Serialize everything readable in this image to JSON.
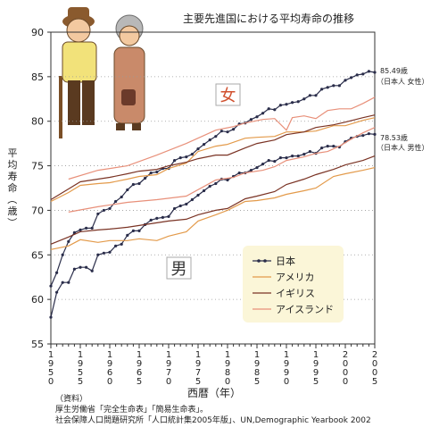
{
  "chart_data": {
    "type": "line",
    "title": "主要先進国における平均寿命の推移",
    "xlabel": "西暦（年）",
    "ylabel": "平均寿命（歳）",
    "xlim": [
      1950,
      2005
    ],
    "ylim": [
      55,
      90
    ],
    "yticks": [
      55,
      60,
      65,
      70,
      75,
      80,
      85,
      90
    ],
    "xticks": [
      1950,
      1955,
      1960,
      1965,
      1970,
      1975,
      1980,
      1985,
      1990,
      1995,
      2000,
      2005
    ],
    "grid": "horizontal dotted",
    "legend_position": "bottom-right",
    "groups": {
      "female": "女",
      "male": "男"
    },
    "annotations": [
      {
        "text": "85.49歳",
        "sub": "（日本人 女性）"
      },
      {
        "text": "78.53歳",
        "sub": "（日本人 男性）"
      }
    ],
    "series": [
      {
        "name": "日本",
        "group": "female",
        "color": "#2a2d4a",
        "marker": "dot",
        "points": [
          [
            1950,
            61.5
          ],
          [
            1951,
            63.0
          ],
          [
            1952,
            65.0
          ],
          [
            1953,
            66.5
          ],
          [
            1954,
            67.5
          ],
          [
            1955,
            67.8
          ],
          [
            1956,
            68.0
          ],
          [
            1957,
            68.0
          ],
          [
            1958,
            69.6
          ],
          [
            1959,
            70.0
          ],
          [
            1960,
            70.2
          ],
          [
            1961,
            71.0
          ],
          [
            1962,
            71.5
          ],
          [
            1963,
            72.3
          ],
          [
            1964,
            72.9
          ],
          [
            1965,
            73.0
          ],
          [
            1966,
            73.6
          ],
          [
            1967,
            74.2
          ],
          [
            1968,
            74.3
          ],
          [
            1969,
            74.7
          ],
          [
            1970,
            74.7
          ],
          [
            1971,
            75.6
          ],
          [
            1972,
            75.9
          ],
          [
            1973,
            76.0
          ],
          [
            1974,
            76.3
          ],
          [
            1975,
            76.9
          ],
          [
            1976,
            77.4
          ],
          [
            1977,
            77.9
          ],
          [
            1978,
            78.3
          ],
          [
            1979,
            78.9
          ],
          [
            1980,
            78.8
          ],
          [
            1981,
            79.1
          ],
          [
            1982,
            79.7
          ],
          [
            1983,
            79.8
          ],
          [
            1984,
            80.2
          ],
          [
            1985,
            80.5
          ],
          [
            1986,
            80.9
          ],
          [
            1987,
            81.4
          ],
          [
            1988,
            81.3
          ],
          [
            1989,
            81.8
          ],
          [
            1990,
            81.9
          ],
          [
            1991,
            82.1
          ],
          [
            1992,
            82.2
          ],
          [
            1993,
            82.5
          ],
          [
            1994,
            82.9
          ],
          [
            1995,
            82.9
          ],
          [
            1996,
            83.6
          ],
          [
            1997,
            83.8
          ],
          [
            1998,
            84.0
          ],
          [
            1999,
            84.0
          ],
          [
            2000,
            84.6
          ],
          [
            2001,
            84.9
          ],
          [
            2002,
            85.2
          ],
          [
            2003,
            85.3
          ],
          [
            2004,
            85.6
          ],
          [
            2005,
            85.49
          ]
        ]
      },
      {
        "name": "日本",
        "group": "male",
        "color": "#2a2d4a",
        "marker": "dot",
        "points": [
          [
            1950,
            58.0
          ],
          [
            1951,
            60.8
          ],
          [
            1952,
            61.9
          ],
          [
            1953,
            61.9
          ],
          [
            1954,
            63.4
          ],
          [
            1955,
            63.6
          ],
          [
            1956,
            63.6
          ],
          [
            1957,
            63.2
          ],
          [
            1958,
            65.0
          ],
          [
            1959,
            65.2
          ],
          [
            1960,
            65.3
          ],
          [
            1961,
            66.0
          ],
          [
            1962,
            66.2
          ],
          [
            1963,
            67.2
          ],
          [
            1964,
            67.7
          ],
          [
            1965,
            67.7
          ],
          [
            1966,
            68.4
          ],
          [
            1967,
            68.9
          ],
          [
            1968,
            69.1
          ],
          [
            1969,
            69.2
          ],
          [
            1970,
            69.3
          ],
          [
            1971,
            70.2
          ],
          [
            1972,
            70.5
          ],
          [
            1973,
            70.7
          ],
          [
            1974,
            71.2
          ],
          [
            1975,
            71.7
          ],
          [
            1976,
            72.2
          ],
          [
            1977,
            72.7
          ],
          [
            1978,
            73.0
          ],
          [
            1979,
            73.5
          ],
          [
            1980,
            73.4
          ],
          [
            1981,
            73.8
          ],
          [
            1982,
            74.2
          ],
          [
            1983,
            74.2
          ],
          [
            1984,
            74.5
          ],
          [
            1985,
            74.8
          ],
          [
            1986,
            75.2
          ],
          [
            1987,
            75.6
          ],
          [
            1988,
            75.5
          ],
          [
            1989,
            75.9
          ],
          [
            1990,
            75.9
          ],
          [
            1991,
            76.1
          ],
          [
            1992,
            76.1
          ],
          [
            1993,
            76.3
          ],
          [
            1994,
            76.6
          ],
          [
            1995,
            76.4
          ],
          [
            1996,
            77.0
          ],
          [
            1997,
            77.2
          ],
          [
            1998,
            77.2
          ],
          [
            1999,
            77.1
          ],
          [
            2000,
            77.7
          ],
          [
            2001,
            78.1
          ],
          [
            2002,
            78.3
          ],
          [
            2003,
            78.4
          ],
          [
            2004,
            78.6
          ],
          [
            2005,
            78.53
          ]
        ]
      },
      {
        "name": "アメリカ",
        "group": "female",
        "color": "#e39a4a",
        "marker": "none",
        "points": [
          [
            1950,
            71.0
          ],
          [
            1953,
            72.0
          ],
          [
            1955,
            72.8
          ],
          [
            1958,
            73.0
          ],
          [
            1960,
            73.1
          ],
          [
            1963,
            73.5
          ],
          [
            1965,
            73.8
          ],
          [
            1968,
            74.0
          ],
          [
            1970,
            74.7
          ],
          [
            1973,
            75.3
          ],
          [
            1975,
            76.6
          ],
          [
            1978,
            77.2
          ],
          [
            1980,
            77.4
          ],
          [
            1983,
            78.1
          ],
          [
            1985,
            78.2
          ],
          [
            1988,
            78.3
          ],
          [
            1990,
            78.8
          ],
          [
            1993,
            78.8
          ],
          [
            1995,
            78.9
          ],
          [
            1998,
            79.5
          ],
          [
            2000,
            79.5
          ],
          [
            2003,
            80.1
          ],
          [
            2005,
            80.4
          ]
        ]
      },
      {
        "name": "アメリカ",
        "group": "male",
        "color": "#e39a4a",
        "marker": "none",
        "points": [
          [
            1950,
            65.6
          ],
          [
            1953,
            66.0
          ],
          [
            1955,
            66.7
          ],
          [
            1958,
            66.4
          ],
          [
            1960,
            66.6
          ],
          [
            1963,
            66.6
          ],
          [
            1965,
            66.8
          ],
          [
            1968,
            66.6
          ],
          [
            1970,
            67.1
          ],
          [
            1973,
            67.6
          ],
          [
            1975,
            68.8
          ],
          [
            1978,
            69.5
          ],
          [
            1980,
            70.0
          ],
          [
            1983,
            71.0
          ],
          [
            1985,
            71.1
          ],
          [
            1988,
            71.4
          ],
          [
            1990,
            71.8
          ],
          [
            1993,
            72.2
          ],
          [
            1995,
            72.5
          ],
          [
            1998,
            73.8
          ],
          [
            2000,
            74.1
          ],
          [
            2003,
            74.5
          ],
          [
            2005,
            74.8
          ]
        ]
      },
      {
        "name": "イギリス",
        "group": "female",
        "color": "#7a3324",
        "marker": "none",
        "points": [
          [
            1950,
            71.2
          ],
          [
            1953,
            72.4
          ],
          [
            1955,
            73.2
          ],
          [
            1958,
            73.5
          ],
          [
            1960,
            73.7
          ],
          [
            1963,
            74.1
          ],
          [
            1965,
            74.4
          ],
          [
            1968,
            74.6
          ],
          [
            1970,
            75.0
          ],
          [
            1973,
            75.4
          ],
          [
            1975,
            75.8
          ],
          [
            1978,
            76.2
          ],
          [
            1980,
            76.2
          ],
          [
            1983,
            77.0
          ],
          [
            1985,
            77.5
          ],
          [
            1988,
            77.9
          ],
          [
            1990,
            78.5
          ],
          [
            1993,
            78.8
          ],
          [
            1995,
            79.3
          ],
          [
            1998,
            79.6
          ],
          [
            2000,
            79.9
          ],
          [
            2003,
            80.4
          ],
          [
            2005,
            80.7
          ]
        ]
      },
      {
        "name": "イギリス",
        "group": "male",
        "color": "#7a3324",
        "marker": "none",
        "points": [
          [
            1950,
            66.2
          ],
          [
            1953,
            67.0
          ],
          [
            1955,
            67.6
          ],
          [
            1958,
            67.8
          ],
          [
            1960,
            67.9
          ],
          [
            1963,
            68.1
          ],
          [
            1965,
            68.3
          ],
          [
            1968,
            68.6
          ],
          [
            1970,
            68.8
          ],
          [
            1973,
            69.0
          ],
          [
            1975,
            69.5
          ],
          [
            1978,
            70.0
          ],
          [
            1980,
            70.2
          ],
          [
            1983,
            71.3
          ],
          [
            1985,
            71.6
          ],
          [
            1988,
            72.1
          ],
          [
            1990,
            72.9
          ],
          [
            1993,
            73.5
          ],
          [
            1995,
            74.0
          ],
          [
            1998,
            74.6
          ],
          [
            2000,
            75.1
          ],
          [
            2003,
            75.6
          ],
          [
            2005,
            76.1
          ]
        ]
      },
      {
        "name": "アイスランド",
        "group": "female",
        "color": "#e8907a",
        "marker": "none",
        "points": [
          [
            1953,
            73.5
          ],
          [
            1958,
            74.5
          ],
          [
            1963,
            75.0
          ],
          [
            1968,
            76.2
          ],
          [
            1973,
            77.5
          ],
          [
            1978,
            79.0
          ],
          [
            1981,
            79.4
          ],
          [
            1983,
            79.8
          ],
          [
            1986,
            80.2
          ],
          [
            1988,
            80.3
          ],
          [
            1990,
            79.0
          ],
          [
            1991,
            80.4
          ],
          [
            1993,
            80.6
          ],
          [
            1995,
            80.3
          ],
          [
            1997,
            81.2
          ],
          [
            1999,
            81.4
          ],
          [
            2001,
            81.4
          ],
          [
            2003,
            82.0
          ],
          [
            2005,
            82.7
          ]
        ]
      },
      {
        "name": "アイスランド",
        "group": "male",
        "color": "#e8907a",
        "marker": "none",
        "points": [
          [
            1953,
            69.8
          ],
          [
            1958,
            70.4
          ],
          [
            1963,
            70.9
          ],
          [
            1968,
            71.2
          ],
          [
            1973,
            71.6
          ],
          [
            1978,
            73.4
          ],
          [
            1981,
            73.7
          ],
          [
            1983,
            74.2
          ],
          [
            1986,
            74.5
          ],
          [
            1988,
            74.9
          ],
          [
            1990,
            75.6
          ],
          [
            1993,
            76.0
          ],
          [
            1995,
            76.4
          ],
          [
            1997,
            76.6
          ],
          [
            1999,
            77.2
          ],
          [
            2001,
            78.0
          ],
          [
            2003,
            78.7
          ],
          [
            2005,
            79.3
          ]
        ]
      }
    ],
    "legend": [
      "日本",
      "アメリカ",
      "イギリス",
      "アイスランド"
    ]
  },
  "source": {
    "heading": "（資料）",
    "lines": [
      "厚生労働省「完全生命表」「簡易生命表」。",
      "社会保障人口問題研究所「人口統計集2005年版」、UN,Demographic Yearbook 2002"
    ]
  }
}
